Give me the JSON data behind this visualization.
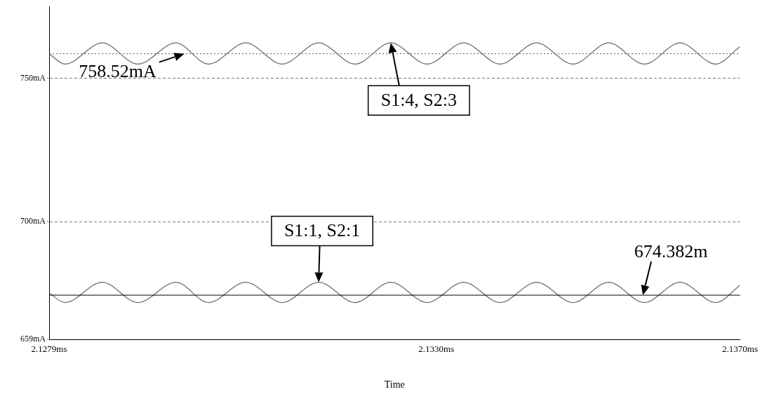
{
  "chart_data": {
    "type": "line",
    "xlabel": "Time",
    "x": [
      2.1279,
      2.12811,
      2.1286,
      2.12907,
      2.12957,
      2.13,
      2.13049,
      2.13097,
      2.13145,
      2.13193,
      2.1324,
      2.13288,
      2.13336,
      2.13384,
      2.13432,
      2.1348,
      2.13527,
      2.13574,
      2.13621,
      2.13668,
      2.137
    ],
    "series": [
      {
        "color": "#666666",
        "values": [
          758.5,
          754.9,
          762.3,
          754.9,
          762.3,
          754.9,
          762.3,
          754.9,
          762.3,
          754.9,
          762.3,
          754.9,
          762.3,
          754.9,
          762.3,
          754.9,
          762.3,
          754.9,
          762.3,
          754.9,
          761.0
        ]
      },
      {
        "color": "#666666",
        "values": [
          675.2,
          671.8,
          678.9,
          671.8,
          678.9,
          671.8,
          678.9,
          671.8,
          678.9,
          671.8,
          678.9,
          671.8,
          678.9,
          671.8,
          678.9,
          671.8,
          678.9,
          671.8,
          678.9,
          671.8,
          677.8
        ]
      }
    ],
    "xlim": [
      2.1279,
      2.137
    ],
    "xticks": [
      {
        "value": 2.1279,
        "label": "2.1279ms"
      },
      {
        "value": 2.133,
        "label": "2.1330ms"
      },
      {
        "value": 2.137,
        "label": "2.1370ms"
      }
    ],
    "ylim": [
      659,
      775
    ],
    "yticks": [
      {
        "value": 659,
        "label": "659mA"
      },
      {
        "value": 700,
        "label": "700mA"
      },
      {
        "value": 750,
        "label": "750mA"
      }
    ],
    "grid": "y",
    "legend": false,
    "marker": "none",
    "line_style": "solid",
    "ref_lines": [
      {
        "axis": "y",
        "value": 758.52,
        "color": "#555555",
        "line_style": "dotted"
      },
      {
        "axis": "y",
        "value": 674.382,
        "color": "#000000",
        "line_style": "solid"
      }
    ],
    "annotations": [
      {
        "text": "758.52mA",
        "x": 2.12968,
        "y": 758.52
      },
      {
        "text": "S1:4, S2:3",
        "x": 2.1324,
        "y": 762.3
      },
      {
        "text": "S1:1, S2:1",
        "x": 2.13145,
        "y": 678.9
      },
      {
        "text": "674.382m",
        "x": 2.13572,
        "y": 674.382
      }
    ]
  }
}
